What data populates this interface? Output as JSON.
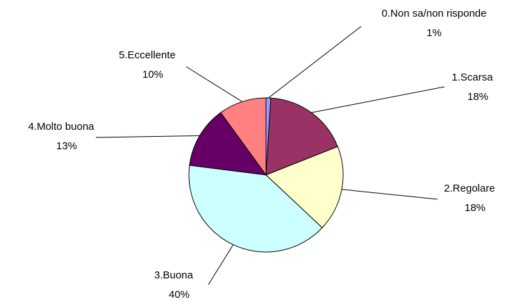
{
  "chart_data": {
    "type": "pie",
    "categories": [
      "0.Non sa/non risponde",
      "1.Scarsa",
      "2.Regolare",
      "3.Buona",
      "4.Molto buona",
      "5.Eccellente"
    ],
    "values": [
      1,
      18,
      18,
      40,
      13,
      10
    ],
    "value_labels": [
      "1%",
      "18%",
      "18%",
      "40%",
      "13%",
      "10%"
    ],
    "colors": [
      "#9999ff",
      "#993366",
      "#ffffcc",
      "#ccffff",
      "#660066",
      "#ff8080"
    ]
  }
}
